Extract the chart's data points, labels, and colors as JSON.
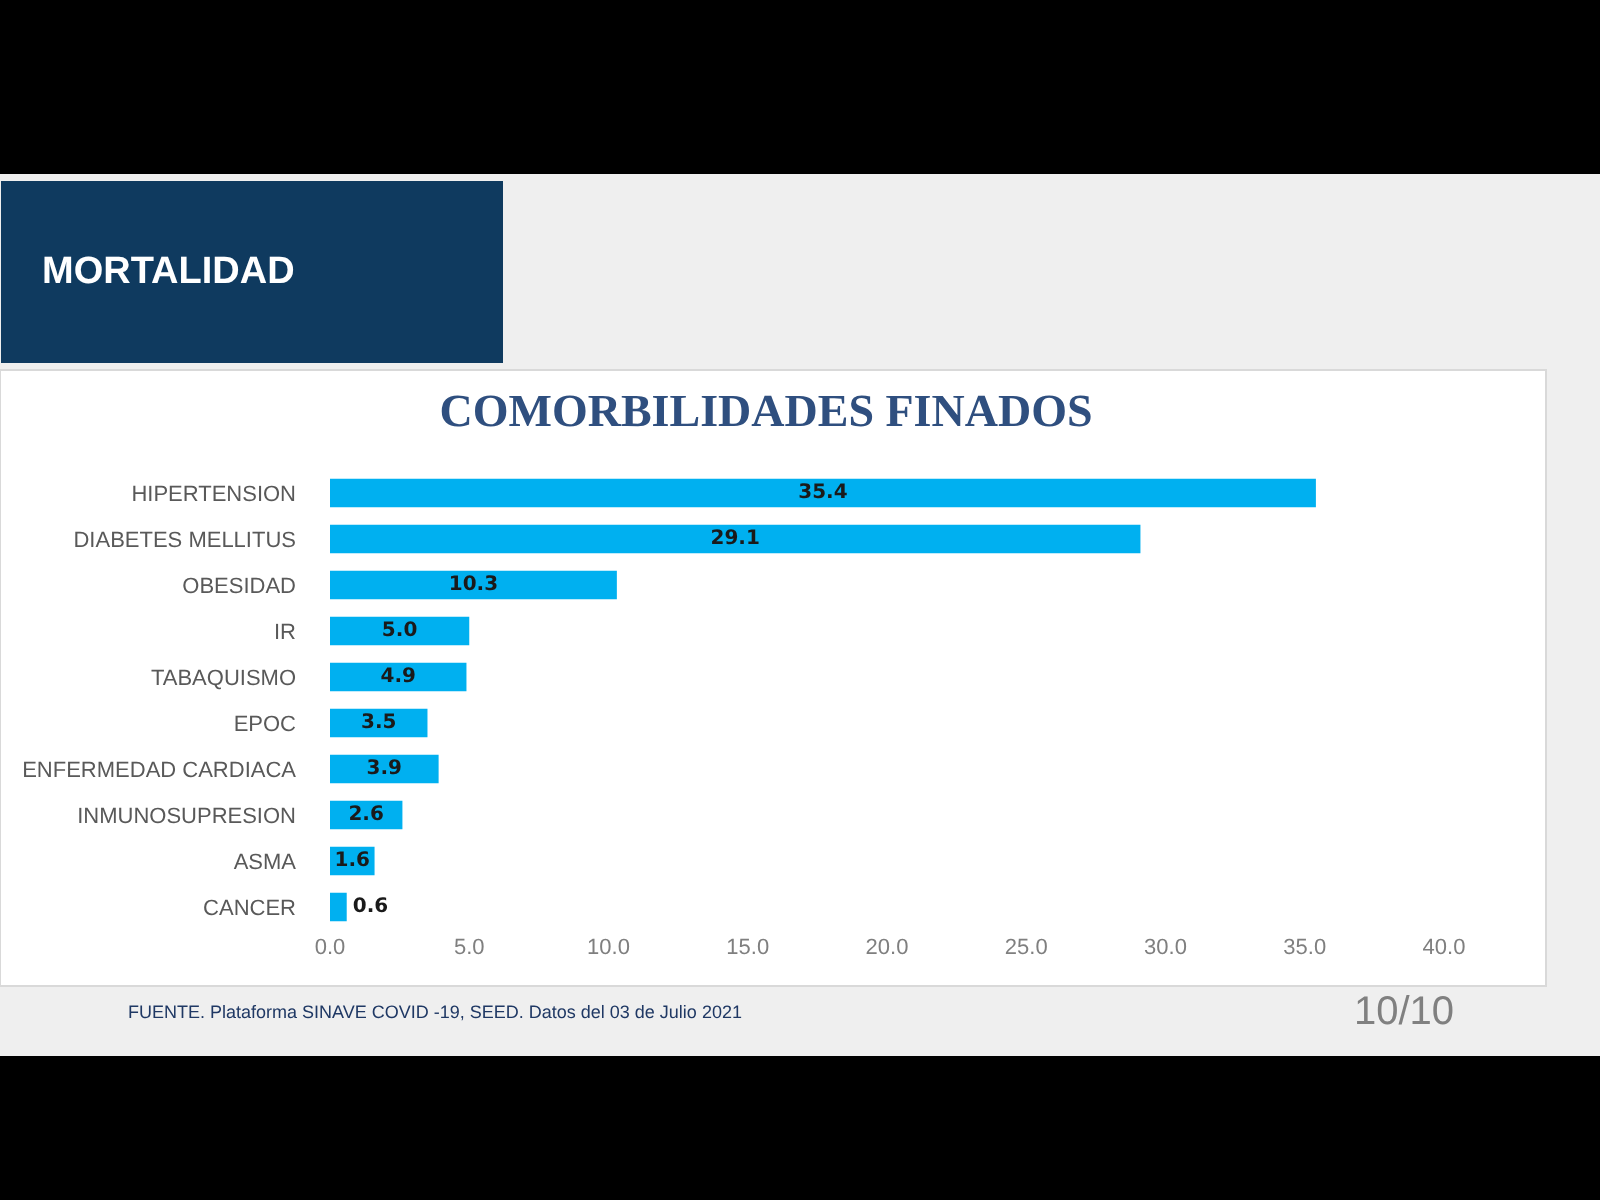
{
  "chart_data": {
    "type": "bar",
    "orientation": "horizontal",
    "title": "COMORBILIDADES FINADOS",
    "categories": [
      "HIPERTENSION",
      "DIABETES MELLITUS",
      "OBESIDAD",
      "IR",
      "TABAQUISMO",
      "EPOC",
      "ENFERMEDAD CARDIACA",
      "INMUNOSUPRESION",
      "ASMA",
      "CANCER"
    ],
    "values": [
      35.4,
      29.1,
      10.3,
      5.0,
      4.9,
      3.5,
      3.9,
      2.6,
      1.6,
      0.6
    ],
    "value_labels": [
      "35.4",
      "29.1",
      "10.3",
      "5.0",
      "4.9",
      "3.5",
      "3.9",
      "2.6",
      "1.6",
      "0.6"
    ],
    "color": "#00b0f0",
    "xlim": [
      0,
      40
    ],
    "xticks": [
      {
        "value": 0,
        "label": "0.0"
      },
      {
        "value": 5,
        "label": "5.0"
      },
      {
        "value": 10,
        "label": "10.0"
      },
      {
        "value": 15,
        "label": "15.0"
      },
      {
        "value": 20,
        "label": "20.0"
      },
      {
        "value": 25,
        "label": "25.0"
      },
      {
        "value": 30,
        "label": "30.0"
      },
      {
        "value": 35,
        "label": "35.0"
      },
      {
        "value": 40,
        "label": "40.0"
      }
    ],
    "grid": false,
    "legend": false,
    "annotations": [
      "MORTALIDAD",
      "FUENTE. Plataforma SINAVE COVID -19, SEED. Datos del 03 de Julio 2021",
      "10/10"
    ]
  }
}
